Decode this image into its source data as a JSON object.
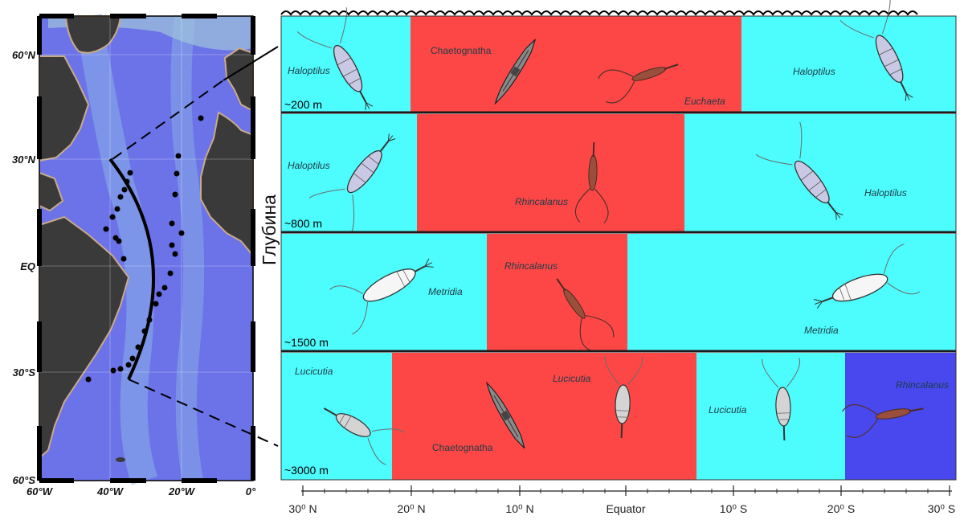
{
  "map": {
    "lat_labels": [
      "60°N",
      "30°N",
      "EQ",
      "30°S",
      "60°S"
    ],
    "lon_labels": [
      "60°W",
      "40°W",
      "20°W",
      "0°"
    ]
  },
  "diagram": {
    "y_label": "Глубина",
    "x_ticks": [
      "30⁰ N",
      "20⁰ N",
      "10⁰ N",
      "Equator",
      "10⁰ S",
      "20⁰ S",
      "30⁰ S"
    ],
    "colors": {
      "cyan": "#4dfcfd",
      "red": "#fd4747",
      "blue": "#4848ee"
    },
    "rows": [
      {
        "depth": "~200 m",
        "taxa": [
          {
            "name": "Haloptilus",
            "italic": true
          },
          {
            "name": "Chaetognatha",
            "italic": false
          },
          {
            "name": "Euchaeta",
            "italic": true
          },
          {
            "name": "Haloptilus",
            "italic": true
          }
        ]
      },
      {
        "depth": "~800 m",
        "taxa": [
          {
            "name": "Haloptilus",
            "italic": true
          },
          {
            "name": "Rhincalanus",
            "italic": true
          },
          {
            "name": "Haloptilus",
            "italic": true
          }
        ]
      },
      {
        "depth": "~1500 m",
        "taxa": [
          {
            "name": "Rhincalanus",
            "italic": true
          },
          {
            "name": "Metridia",
            "italic": true
          },
          {
            "name": "Metridia",
            "italic": true
          }
        ]
      },
      {
        "depth": "~3000 m",
        "taxa": [
          {
            "name": "Lucicutia",
            "italic": true
          },
          {
            "name": "Lucicutia",
            "italic": true
          },
          {
            "name": "Chaetognatha",
            "italic": false
          },
          {
            "name": "Lucicutia",
            "italic": true
          },
          {
            "name": "Rhincalanus",
            "italic": true
          }
        ]
      }
    ]
  }
}
